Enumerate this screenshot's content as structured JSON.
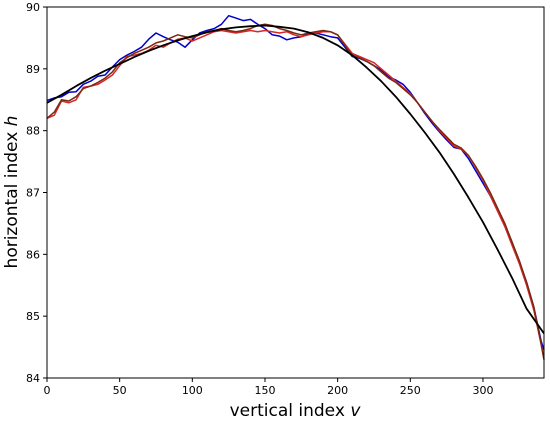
{
  "chart_data": {
    "type": "line",
    "xlabel": "vertical index",
    "xlabel_var": "v",
    "ylabel": "horizontal index",
    "ylabel_var": "h",
    "xlim": [
      0,
      342
    ],
    "ylim": [
      84,
      90
    ],
    "x_ticks": [
      0,
      50,
      100,
      150,
      200,
      250,
      300
    ],
    "y_ticks": [
      84,
      85,
      86,
      87,
      88,
      89,
      90
    ],
    "grid": false,
    "legend": "none",
    "colors": {
      "blue": "#0000cc",
      "red": "#d62728",
      "brown": "#7a2a10",
      "fit": "#000000"
    },
    "series": [
      {
        "color": "blue",
        "points": [
          [
            0,
            88.49
          ],
          [
            5,
            88.53
          ],
          [
            10,
            88.55
          ],
          [
            15,
            88.62
          ],
          [
            20,
            88.63
          ],
          [
            25,
            88.75
          ],
          [
            30,
            88.8
          ],
          [
            35,
            88.88
          ],
          [
            40,
            88.9
          ],
          [
            45,
            89.03
          ],
          [
            50,
            89.15
          ],
          [
            55,
            89.22
          ],
          [
            60,
            89.28
          ],
          [
            65,
            89.35
          ],
          [
            70,
            89.48
          ],
          [
            75,
            89.58
          ],
          [
            80,
            89.52
          ],
          [
            85,
            89.47
          ],
          [
            90,
            89.43
          ],
          [
            95,
            89.35
          ],
          [
            100,
            89.47
          ],
          [
            105,
            89.58
          ],
          [
            110,
            89.62
          ],
          [
            115,
            89.65
          ],
          [
            120,
            89.72
          ],
          [
            125,
            89.86
          ],
          [
            130,
            89.82
          ],
          [
            135,
            89.78
          ],
          [
            140,
            89.8
          ],
          [
            145,
            89.72
          ],
          [
            150,
            89.65
          ],
          [
            155,
            89.55
          ],
          [
            160,
            89.53
          ],
          [
            165,
            89.47
          ],
          [
            170,
            89.5
          ],
          [
            175,
            89.52
          ],
          [
            180,
            89.57
          ],
          [
            185,
            89.58
          ],
          [
            190,
            89.55
          ],
          [
            195,
            89.52
          ],
          [
            200,
            89.5
          ],
          [
            205,
            89.35
          ],
          [
            210,
            89.2
          ],
          [
            215,
            89.17
          ],
          [
            220,
            89.12
          ],
          [
            225,
            89.05
          ],
          [
            230,
            88.98
          ],
          [
            235,
            88.87
          ],
          [
            240,
            88.82
          ],
          [
            245,
            88.75
          ],
          [
            250,
            88.62
          ],
          [
            255,
            88.45
          ],
          [
            260,
            88.28
          ],
          [
            265,
            88.12
          ],
          [
            270,
            87.98
          ],
          [
            275,
            87.85
          ],
          [
            280,
            87.73
          ],
          [
            285,
            87.7
          ],
          [
            290,
            87.55
          ],
          [
            295,
            87.35
          ],
          [
            300,
            87.15
          ],
          [
            305,
            86.95
          ],
          [
            310,
            86.72
          ],
          [
            315,
            86.48
          ],
          [
            320,
            86.2
          ],
          [
            325,
            85.88
          ],
          [
            330,
            85.55
          ],
          [
            335,
            85.15
          ],
          [
            340,
            84.6
          ],
          [
            342,
            84.45
          ]
        ]
      },
      {
        "color": "red",
        "points": [
          [
            0,
            88.2
          ],
          [
            5,
            88.25
          ],
          [
            10,
            88.48
          ],
          [
            15,
            88.45
          ],
          [
            20,
            88.5
          ],
          [
            25,
            88.7
          ],
          [
            30,
            88.72
          ],
          [
            35,
            88.75
          ],
          [
            40,
            88.82
          ],
          [
            45,
            88.9
          ],
          [
            50,
            89.05
          ],
          [
            55,
            89.2
          ],
          [
            60,
            89.22
          ],
          [
            65,
            89.25
          ],
          [
            70,
            89.3
          ],
          [
            75,
            89.38
          ],
          [
            80,
            89.35
          ],
          [
            85,
            89.42
          ],
          [
            90,
            89.48
          ],
          [
            95,
            89.5
          ],
          [
            100,
            89.45
          ],
          [
            105,
            89.5
          ],
          [
            110,
            89.55
          ],
          [
            115,
            89.6
          ],
          [
            120,
            89.62
          ],
          [
            125,
            89.6
          ],
          [
            130,
            89.58
          ],
          [
            135,
            89.6
          ],
          [
            140,
            89.62
          ],
          [
            145,
            89.6
          ],
          [
            150,
            89.62
          ],
          [
            155,
            89.6
          ],
          [
            160,
            89.58
          ],
          [
            165,
            89.6
          ],
          [
            170,
            89.55
          ],
          [
            175,
            89.52
          ],
          [
            180,
            89.55
          ],
          [
            185,
            89.58
          ],
          [
            190,
            89.6
          ],
          [
            195,
            89.6
          ],
          [
            200,
            89.55
          ],
          [
            205,
            89.4
          ],
          [
            210,
            89.25
          ],
          [
            215,
            89.2
          ],
          [
            220,
            89.15
          ],
          [
            225,
            89.1
          ],
          [
            230,
            89.0
          ],
          [
            235,
            88.9
          ],
          [
            240,
            88.8
          ],
          [
            245,
            88.7
          ],
          [
            250,
            88.6
          ],
          [
            255,
            88.45
          ],
          [
            260,
            88.3
          ],
          [
            265,
            88.15
          ],
          [
            270,
            88.0
          ],
          [
            275,
            87.88
          ],
          [
            280,
            87.75
          ],
          [
            285,
            87.7
          ],
          [
            290,
            87.6
          ],
          [
            295,
            87.4
          ],
          [
            300,
            87.2
          ],
          [
            305,
            86.95
          ],
          [
            310,
            86.7
          ],
          [
            315,
            86.45
          ],
          [
            320,
            86.15
          ],
          [
            325,
            85.85
          ],
          [
            330,
            85.5
          ],
          [
            335,
            85.1
          ],
          [
            340,
            84.55
          ],
          [
            342,
            84.3
          ]
        ]
      },
      {
        "color": "brown",
        "points": [
          [
            0,
            88.2
          ],
          [
            5,
            88.3
          ],
          [
            10,
            88.5
          ],
          [
            15,
            88.48
          ],
          [
            20,
            88.55
          ],
          [
            25,
            88.68
          ],
          [
            30,
            88.72
          ],
          [
            35,
            88.78
          ],
          [
            40,
            88.85
          ],
          [
            45,
            88.95
          ],
          [
            50,
            89.1
          ],
          [
            55,
            89.18
          ],
          [
            60,
            89.25
          ],
          [
            65,
            89.3
          ],
          [
            70,
            89.35
          ],
          [
            75,
            89.42
          ],
          [
            80,
            89.45
          ],
          [
            85,
            89.5
          ],
          [
            90,
            89.55
          ],
          [
            95,
            89.52
          ],
          [
            100,
            89.5
          ],
          [
            105,
            89.55
          ],
          [
            110,
            89.6
          ],
          [
            115,
            89.62
          ],
          [
            120,
            89.65
          ],
          [
            125,
            89.62
          ],
          [
            130,
            89.6
          ],
          [
            135,
            89.62
          ],
          [
            140,
            89.65
          ],
          [
            145,
            89.7
          ],
          [
            150,
            89.72
          ],
          [
            155,
            89.7
          ],
          [
            160,
            89.65
          ],
          [
            165,
            89.62
          ],
          [
            170,
            89.58
          ],
          [
            175,
            89.55
          ],
          [
            180,
            89.58
          ],
          [
            185,
            89.6
          ],
          [
            190,
            89.62
          ],
          [
            195,
            89.6
          ],
          [
            200,
            89.55
          ],
          [
            205,
            89.38
          ],
          [
            210,
            89.22
          ],
          [
            215,
            89.18
          ],
          [
            220,
            89.12
          ],
          [
            225,
            89.05
          ],
          [
            230,
            88.95
          ],
          [
            235,
            88.85
          ],
          [
            240,
            88.78
          ],
          [
            245,
            88.68
          ],
          [
            250,
            88.58
          ],
          [
            255,
            88.45
          ],
          [
            260,
            88.3
          ],
          [
            265,
            88.15
          ],
          [
            270,
            88.02
          ],
          [
            275,
            87.9
          ],
          [
            280,
            87.78
          ],
          [
            285,
            87.72
          ],
          [
            290,
            87.6
          ],
          [
            295,
            87.42
          ],
          [
            300,
            87.22
          ],
          [
            305,
            87.0
          ],
          [
            310,
            86.75
          ],
          [
            315,
            86.5
          ],
          [
            320,
            86.2
          ],
          [
            325,
            85.9
          ],
          [
            330,
            85.55
          ],
          [
            335,
            85.15
          ],
          [
            340,
            84.55
          ],
          [
            342,
            84.3
          ]
        ]
      },
      {
        "color": "fit",
        "points": [
          [
            0,
            88.45
          ],
          [
            10,
            88.58
          ],
          [
            20,
            88.72
          ],
          [
            30,
            88.85
          ],
          [
            40,
            88.97
          ],
          [
            50,
            89.08
          ],
          [
            60,
            89.19
          ],
          [
            70,
            89.29
          ],
          [
            80,
            89.38
          ],
          [
            90,
            89.46
          ],
          [
            100,
            89.53
          ],
          [
            110,
            89.59
          ],
          [
            120,
            89.64
          ],
          [
            130,
            89.67
          ],
          [
            140,
            89.69
          ],
          [
            150,
            89.7
          ],
          [
            160,
            89.68
          ],
          [
            170,
            89.65
          ],
          [
            180,
            89.59
          ],
          [
            190,
            89.5
          ],
          [
            200,
            89.38
          ],
          [
            210,
            89.22
          ],
          [
            220,
            89.02
          ],
          [
            230,
            88.8
          ],
          [
            240,
            88.55
          ],
          [
            250,
            88.27
          ],
          [
            260,
            87.97
          ],
          [
            270,
            87.65
          ],
          [
            280,
            87.3
          ],
          [
            290,
            86.92
          ],
          [
            300,
            86.52
          ],
          [
            310,
            86.08
          ],
          [
            320,
            85.62
          ],
          [
            330,
            85.12
          ],
          [
            342,
            84.72
          ]
        ]
      }
    ]
  }
}
